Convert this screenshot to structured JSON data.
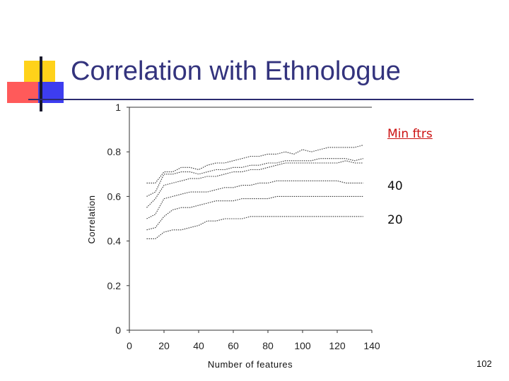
{
  "slide": {
    "title": "Correlation with Ethnologue",
    "page_number": "102"
  },
  "legend": {
    "header": "Min ftrs",
    "items": [
      "40",
      "20"
    ]
  },
  "colors": {
    "title": "#33337d",
    "legend_header": "#cc1111",
    "deco_yellow": "#ffd21a",
    "deco_red": "#ff5a5a",
    "deco_blue": "#3d3df0"
  },
  "chart_data": {
    "type": "line",
    "title": "",
    "xlabel": "Number of features",
    "ylabel": "Correlation",
    "xlim": [
      0,
      140
    ],
    "ylim": [
      0,
      1
    ],
    "x_ticks": [
      0,
      20,
      40,
      60,
      80,
      100,
      120,
      140
    ],
    "y_ticks": [
      "0",
      "0.2",
      "0.4",
      "0.6",
      "0.8",
      "1"
    ],
    "grid": false,
    "line_style": "dotted",
    "x": [
      10,
      15,
      20,
      25,
      30,
      35,
      40,
      45,
      50,
      55,
      60,
      65,
      70,
      75,
      80,
      85,
      90,
      95,
      100,
      105,
      110,
      115,
      120,
      125,
      130,
      135
    ],
    "series": [
      {
        "values": [
          0.66,
          0.66,
          0.71,
          0.71,
          0.73,
          0.73,
          0.72,
          0.74,
          0.75,
          0.75,
          0.76,
          0.77,
          0.78,
          0.78,
          0.79,
          0.79,
          0.8,
          0.79,
          0.81,
          0.8,
          0.81,
          0.82,
          0.82,
          0.82,
          0.82,
          0.83
        ]
      },
      {
        "values": [
          0.6,
          0.62,
          0.7,
          0.7,
          0.71,
          0.71,
          0.7,
          0.71,
          0.72,
          0.72,
          0.73,
          0.73,
          0.74,
          0.74,
          0.75,
          0.75,
          0.76,
          0.76,
          0.76,
          0.76,
          0.77,
          0.77,
          0.77,
          0.77,
          0.76,
          0.77
        ]
      },
      {
        "values": [
          0.55,
          0.59,
          0.65,
          0.66,
          0.67,
          0.68,
          0.68,
          0.69,
          0.69,
          0.7,
          0.71,
          0.71,
          0.72,
          0.72,
          0.73,
          0.74,
          0.75,
          0.75,
          0.75,
          0.75,
          0.75,
          0.75,
          0.75,
          0.76,
          0.75,
          0.75
        ]
      },
      {
        "values": [
          0.5,
          0.52,
          0.59,
          0.6,
          0.61,
          0.62,
          0.62,
          0.62,
          0.63,
          0.64,
          0.64,
          0.65,
          0.65,
          0.66,
          0.66,
          0.67,
          0.67,
          0.67,
          0.67,
          0.67,
          0.67,
          0.67,
          0.67,
          0.66,
          0.66,
          0.66
        ]
      },
      {
        "values": [
          0.45,
          0.46,
          0.51,
          0.54,
          0.55,
          0.55,
          0.56,
          0.57,
          0.58,
          0.58,
          0.58,
          0.59,
          0.59,
          0.59,
          0.59,
          0.6,
          0.6,
          0.6,
          0.6,
          0.6,
          0.6,
          0.6,
          0.6,
          0.6,
          0.6,
          0.6
        ]
      },
      {
        "values": [
          0.41,
          0.41,
          0.44,
          0.45,
          0.45,
          0.46,
          0.47,
          0.49,
          0.49,
          0.5,
          0.5,
          0.5,
          0.51,
          0.51,
          0.51,
          0.51,
          0.51,
          0.51,
          0.51,
          0.51,
          0.51,
          0.51,
          0.51,
          0.51,
          0.51,
          0.51
        ]
      }
    ]
  }
}
